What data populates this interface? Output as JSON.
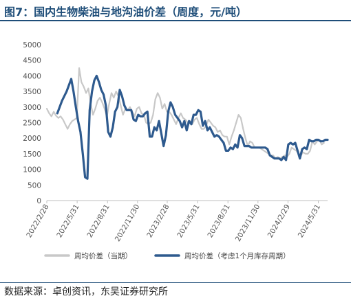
{
  "figure": {
    "title": "图7：国内生物柴油与地沟油价差（周度，元/吨）",
    "source": "数据来源：卓创资讯，东吴证券研究所"
  },
  "colors": {
    "title": "#1f4e79",
    "series_current": "#c8c8c8",
    "series_lagged": "#2e5a8e",
    "axis": "#bfbfbf"
  },
  "chart_data": {
    "type": "line",
    "title": "",
    "xlabel": "",
    "ylabel": "",
    "ylim": [
      0,
      5000
    ],
    "yticks": [
      "0",
      "500",
      "1000",
      "1500",
      "2000",
      "2500",
      "3000",
      "3500",
      "4000",
      "4500",
      "5000"
    ],
    "x_range": [
      "2022-02-28",
      "2024-06-28"
    ],
    "xticks": [
      "2022/2/28",
      "2022/5/31",
      "2022/8/31",
      "2022/11/30",
      "2023/2/28",
      "2023/5/31",
      "2023/8/31",
      "2023/11/30",
      "2024/2/29",
      "2024/5/31"
    ],
    "grid": false,
    "legend_position": "bottom",
    "series": [
      {
        "name": "周均价差（当期）",
        "x": [
          "2022-02-28",
          "2022-03-07",
          "2022-03-14",
          "2022-03-21",
          "2022-03-28",
          "2022-04-04",
          "2022-04-11",
          "2022-04-18",
          "2022-04-25",
          "2022-05-02",
          "2022-05-09",
          "2022-05-16",
          "2022-05-23",
          "2022-05-30",
          "2022-06-06",
          "2022-06-13",
          "2022-06-20",
          "2022-06-27",
          "2022-07-04",
          "2022-07-11",
          "2022-07-18",
          "2022-07-25",
          "2022-08-01",
          "2022-08-08",
          "2022-08-15",
          "2022-08-22",
          "2022-08-29",
          "2022-09-05",
          "2022-09-12",
          "2022-09-19",
          "2022-09-26",
          "2022-10-03",
          "2022-10-10",
          "2022-10-17",
          "2022-10-24",
          "2022-10-31",
          "2022-11-07",
          "2022-11-14",
          "2022-11-21",
          "2022-11-28",
          "2022-12-05",
          "2022-12-12",
          "2022-12-19",
          "2022-12-26",
          "2023-01-02",
          "2023-01-09",
          "2023-01-16",
          "2023-01-23",
          "2023-01-30",
          "2023-02-06",
          "2023-02-13",
          "2023-02-20",
          "2023-02-27",
          "2023-03-06",
          "2023-03-13",
          "2023-03-20",
          "2023-03-27",
          "2023-04-03",
          "2023-04-10",
          "2023-04-17",
          "2023-04-24",
          "2023-05-01",
          "2023-05-08",
          "2023-05-15",
          "2023-05-22",
          "2023-05-29",
          "2023-06-05",
          "2023-06-12",
          "2023-06-19",
          "2023-06-26",
          "2023-07-03",
          "2023-07-10",
          "2023-07-17",
          "2023-07-24",
          "2023-07-31",
          "2023-08-07",
          "2023-08-14",
          "2023-08-21",
          "2023-08-28",
          "2023-09-04",
          "2023-09-11",
          "2023-09-18",
          "2023-09-25",
          "2023-10-02",
          "2023-10-09",
          "2023-10-16",
          "2023-10-23",
          "2023-10-30",
          "2023-11-06",
          "2023-11-13",
          "2023-11-20",
          "2023-11-27",
          "2023-12-04",
          "2023-12-11",
          "2023-12-18",
          "2023-12-25",
          "2024-01-01",
          "2024-01-08",
          "2024-01-15",
          "2024-01-22",
          "2024-01-29",
          "2024-02-05",
          "2024-02-12",
          "2024-02-19",
          "2024-02-26",
          "2024-03-04",
          "2024-03-11",
          "2024-03-18",
          "2024-03-25",
          "2024-04-01",
          "2024-04-08",
          "2024-04-15",
          "2024-04-22",
          "2024-04-29",
          "2024-05-06",
          "2024-05-13",
          "2024-05-20",
          "2024-05-27",
          "2024-06-03",
          "2024-06-10",
          "2024-06-17"
        ],
        "y": [
          2950,
          2800,
          2700,
          2850,
          2720,
          2650,
          2700,
          2600,
          2450,
          2300,
          2450,
          2550,
          2600,
          2650,
          4250,
          3800,
          3650,
          3450,
          3600,
          3100,
          2750,
          2950,
          3200,
          3300,
          3150,
          2950,
          2700,
          3100,
          3450,
          3300,
          3500,
          3350,
          3050,
          2750,
          2950,
          2900,
          3000,
          2850,
          2700,
          2950,
          3000,
          2800,
          2750,
          2500,
          2450,
          2500,
          2750,
          3250,
          3450,
          3300,
          2950,
          3100,
          2850,
          2850,
          2750,
          2600,
          2450,
          2650,
          2800,
          2650,
          2600,
          2500,
          2550,
          2450,
          2600,
          2650,
          2450,
          2300,
          2300,
          2400,
          2600,
          2500,
          2400,
          2350,
          2200,
          2250,
          2100,
          2050,
          2050,
          1800,
          2050,
          2250,
          2500,
          2750,
          2650,
          2300,
          2000,
          1750,
          1900,
          1850,
          1700,
          1700,
          1700,
          1650,
          1600,
          1550,
          1500,
          1450,
          1450,
          1350,
          1400,
          1350,
          1400,
          1450,
          1400,
          1500,
          1700,
          1650,
          1600,
          1500,
          1450,
          1550,
          1500,
          1500,
          1600,
          1900,
          1800,
          1900,
          1950,
          1800,
          1850
        ]
      },
      {
        "name": "周均价差（考虑1个月库存周期）",
        "x": [
          "2022-04-01",
          "2022-04-15",
          "2022-04-29",
          "2022-05-13",
          "2022-05-20",
          "2022-05-27",
          "2022-06-03",
          "2022-06-10",
          "2022-06-17",
          "2022-06-24",
          "2022-07-01",
          "2022-07-08",
          "2022-07-15",
          "2022-07-22",
          "2022-07-29",
          "2022-08-05",
          "2022-08-12",
          "2022-08-19",
          "2022-08-26",
          "2022-09-02",
          "2022-09-09",
          "2022-09-16",
          "2022-09-23",
          "2022-09-30",
          "2022-10-07",
          "2022-10-14",
          "2022-10-21",
          "2022-10-28",
          "2022-11-04",
          "2022-11-11",
          "2022-11-18",
          "2022-11-25",
          "2022-12-02",
          "2022-12-09",
          "2022-12-16",
          "2022-12-23",
          "2022-12-30",
          "2023-01-06",
          "2023-01-13",
          "2023-01-20",
          "2023-01-27",
          "2023-02-03",
          "2023-02-10",
          "2023-02-17",
          "2023-02-24",
          "2023-03-03",
          "2023-03-10",
          "2023-03-17",
          "2023-03-24",
          "2023-03-31",
          "2023-04-07",
          "2023-04-14",
          "2023-04-21",
          "2023-04-28",
          "2023-05-05",
          "2023-05-12",
          "2023-05-19",
          "2023-05-26",
          "2023-06-02",
          "2023-06-09",
          "2023-06-16",
          "2023-06-23",
          "2023-06-30",
          "2023-07-07",
          "2023-07-14",
          "2023-07-21",
          "2023-07-28",
          "2023-08-04",
          "2023-08-11",
          "2023-08-18",
          "2023-08-25",
          "2023-09-01",
          "2023-09-08",
          "2023-09-15",
          "2023-09-22",
          "2023-09-29",
          "2023-10-06",
          "2023-10-13",
          "2023-10-20",
          "2023-10-27",
          "2023-11-03",
          "2023-11-10",
          "2023-11-17",
          "2023-11-24",
          "2023-12-01",
          "2023-12-08",
          "2023-12-15",
          "2023-12-22",
          "2023-12-29",
          "2024-01-05",
          "2024-01-12",
          "2024-01-19",
          "2024-01-26",
          "2024-02-02",
          "2024-02-09",
          "2024-02-16",
          "2024-02-23",
          "2024-03-01",
          "2024-03-08",
          "2024-03-15",
          "2024-03-22",
          "2024-03-29",
          "2024-04-05",
          "2024-04-12",
          "2024-04-19",
          "2024-04-26",
          "2024-05-03",
          "2024-05-10",
          "2024-05-17",
          "2024-05-24",
          "2024-05-31",
          "2024-06-07",
          "2024-06-14",
          "2024-06-21",
          "2024-06-28"
        ],
        "y": [
          2800,
          3200,
          3500,
          3900,
          3500,
          3000,
          2550,
          2200,
          1500,
          750,
          700,
          2900,
          3500,
          3850,
          4000,
          3800,
          3550,
          3400,
          3050,
          2200,
          2050,
          2350,
          2850,
          3000,
          3550,
          3350,
          3050,
          2900,
          2900,
          2900,
          2600,
          2550,
          2750,
          2700,
          2700,
          2800,
          2850,
          2050,
          2050,
          2350,
          2250,
          2550,
          2150,
          1750,
          2100,
          2850,
          3150,
          3000,
          2750,
          2650,
          2550,
          2350,
          2550,
          2250,
          2550,
          2450,
          2750,
          2750,
          2900,
          2850,
          2400,
          2550,
          2250,
          2350,
          2200,
          2050,
          2100,
          2050,
          1950,
          1850,
          1600,
          1600,
          1700,
          1650,
          1800,
          1700,
          2100,
          2000,
          1750,
          1750,
          1750,
          1700,
          1700,
          1700,
          1700,
          1700,
          1700,
          1700,
          1650,
          1450,
          1400,
          1350,
          1350,
          1350,
          1300,
          1400,
          1300,
          1800,
          1850,
          1800,
          1850,
          1600,
          1350,
          1650,
          1700,
          1650,
          1950,
          1900,
          1900,
          1950,
          1950,
          1900,
          1900,
          1950,
          1950
        ]
      }
    ]
  }
}
